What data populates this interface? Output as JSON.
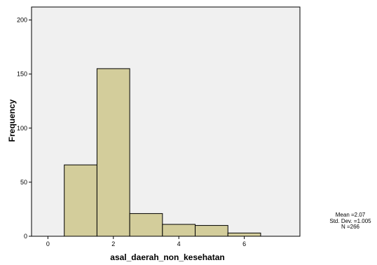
{
  "chart_data": {
    "type": "bar",
    "bins": [
      {
        "start": 0.5,
        "end": 1.5,
        "frequency": 66
      },
      {
        "start": 1.5,
        "end": 2.5,
        "frequency": 155
      },
      {
        "start": 2.5,
        "end": 3.5,
        "frequency": 21
      },
      {
        "start": 3.5,
        "end": 4.5,
        "frequency": 11
      },
      {
        "start": 4.5,
        "end": 5.5,
        "frequency": 10
      },
      {
        "start": 5.5,
        "end": 6.5,
        "frequency": 3
      }
    ],
    "xlim": [
      -0.5,
      7.7
    ],
    "ylim": [
      0,
      212
    ],
    "x_ticks": [
      "0",
      "2",
      "4",
      "6"
    ],
    "y_ticks": [
      "0",
      "50",
      "100",
      "150",
      "200"
    ],
    "xlabel": "asal_daerah_non_kesehatan",
    "ylabel": "Frequency",
    "grid": false,
    "colors": {
      "bar_fill": "#d3cd9b",
      "plot_background": "#f0f0f0",
      "outline": "#000000"
    },
    "stats": {
      "mean": "Mean =2.07",
      "std": "Std. Dev. =1.005",
      "n": "N =266"
    }
  }
}
